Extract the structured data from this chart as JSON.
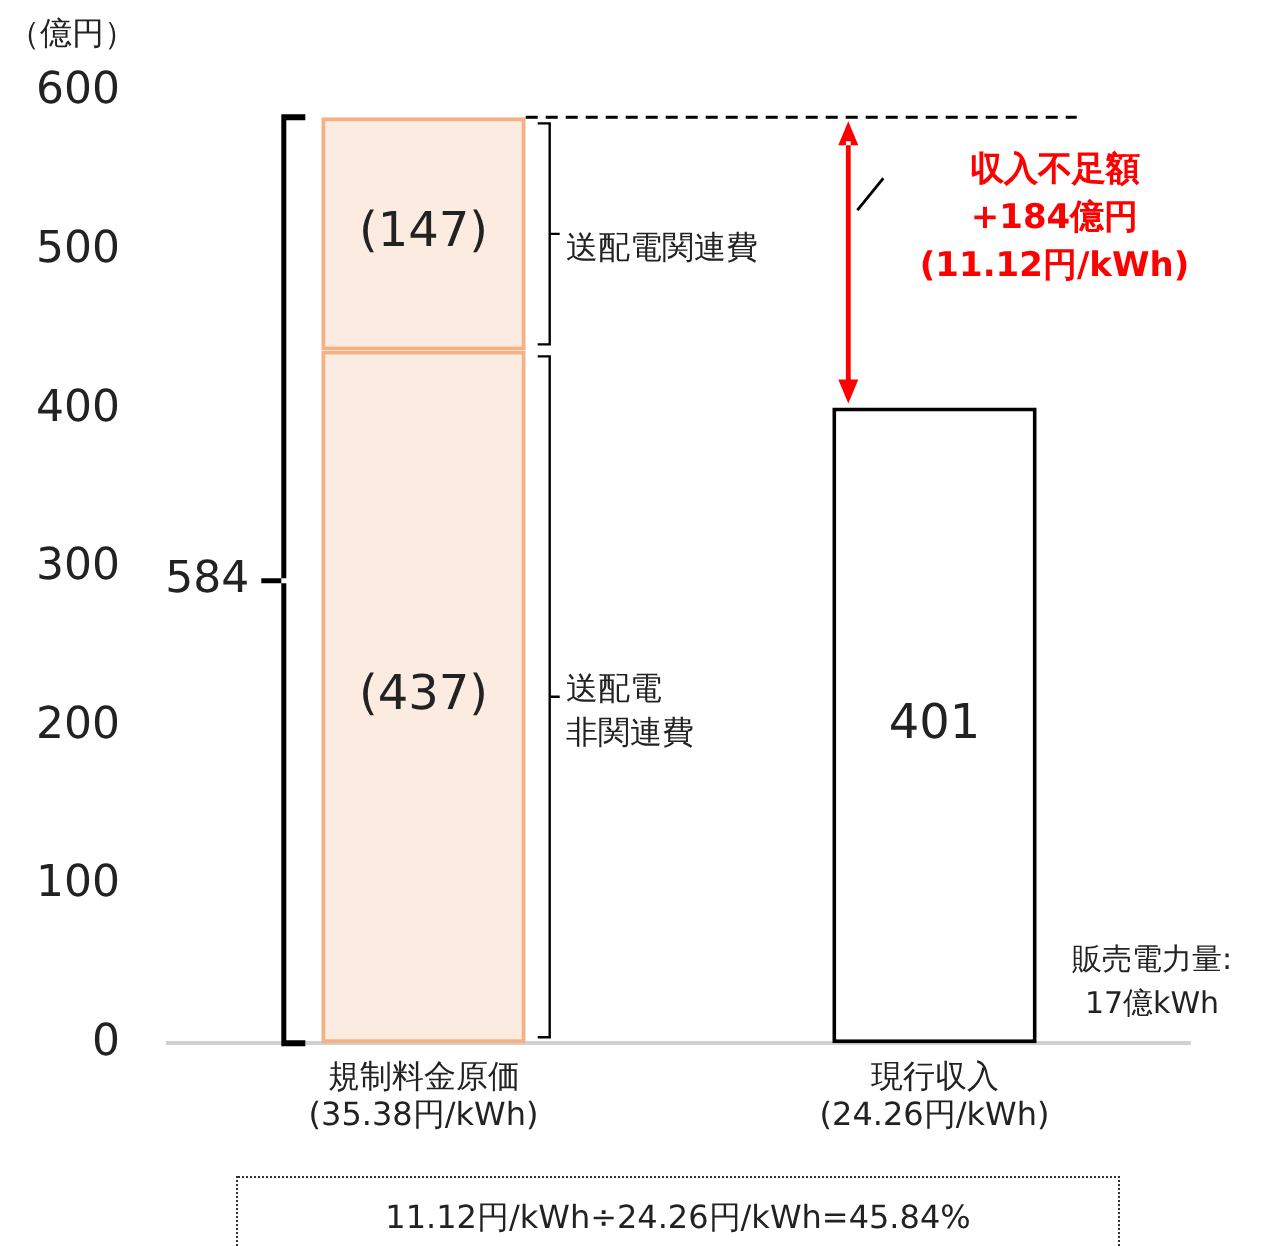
{
  "chart_data": {
    "type": "bar",
    "stacked": true,
    "ylabel": "（億円）",
    "categories": [
      "規制料金原価\n(35.38円/kWh)",
      "現行収入\n(24.26円/kWh)"
    ],
    "series": [
      {
        "name": "送配電非関連費",
        "colors": [
          "#f4b183",
          "#ffffff"
        ],
        "values": [
          437,
          401
        ],
        "value_labels": [
          "(437)",
          "401"
        ]
      },
      {
        "name": "送配電関連費",
        "color": "#f4b183",
        "values": [
          147,
          null
        ],
        "value_labels": [
          "(147)",
          null
        ]
      }
    ],
    "totals": [
      "584",
      null
    ],
    "ylim": [
      0,
      600
    ],
    "yticks": [
      0,
      100,
      200,
      300,
      400,
      500,
      600
    ],
    "grid": false,
    "legend": false,
    "ref_lines": [
      {
        "axis": "y",
        "value": 584,
        "line_style": "dashed"
      }
    ],
    "annotations": [
      "収入不足額\n+184億円\n(11.12円/kWh)",
      "販売電力量:\n17億kWh",
      "11.12円/kWh÷24.26円/kWh=45.84%"
    ]
  }
}
